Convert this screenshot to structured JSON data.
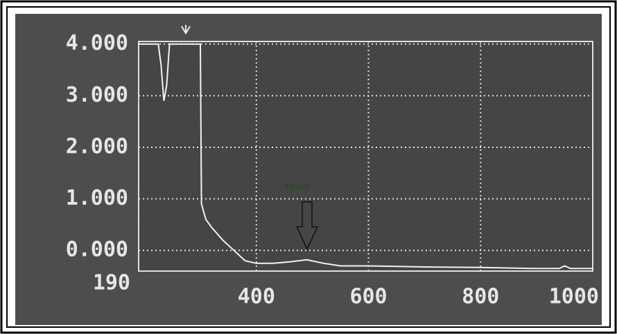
{
  "chart_data": {
    "type": "line",
    "annotation": "490nm",
    "x": [
      190,
      210,
      225,
      230,
      235,
      240,
      245,
      250,
      280,
      300,
      302,
      310,
      320,
      340,
      360,
      380,
      400,
      430,
      460,
      490,
      520,
      550,
      600,
      700,
      800,
      900,
      940,
      950,
      960,
      1000
    ],
    "series": [
      {
        "color": "#f2f2f2",
        "values": [
          4,
          4,
          4,
          3.6,
          2.9,
          3.2,
          4,
          4,
          4,
          4,
          0.9,
          0.6,
          0.45,
          0.2,
          0.0,
          -0.2,
          -0.25,
          -0.25,
          -0.22,
          -0.18,
          -0.25,
          -0.3,
          -0.3,
          -0.32,
          -0.33,
          -0.35,
          -0.35,
          -0.3,
          -0.35,
          -0.35
        ]
      }
    ],
    "xlim": [
      190,
      1000
    ],
    "xticks": [
      190,
      400,
      600,
      800,
      1000
    ],
    "ylim": [
      -0.4,
      4.05
    ],
    "yticks": [
      {
        "value": 0,
        "label": "0.000"
      },
      {
        "value": 1,
        "label": "1.000"
      },
      {
        "value": 2,
        "label": "2.000"
      },
      {
        "value": 3,
        "label": "3.000"
      },
      {
        "value": 4,
        "label": "4.000"
      }
    ],
    "grid": true
  }
}
